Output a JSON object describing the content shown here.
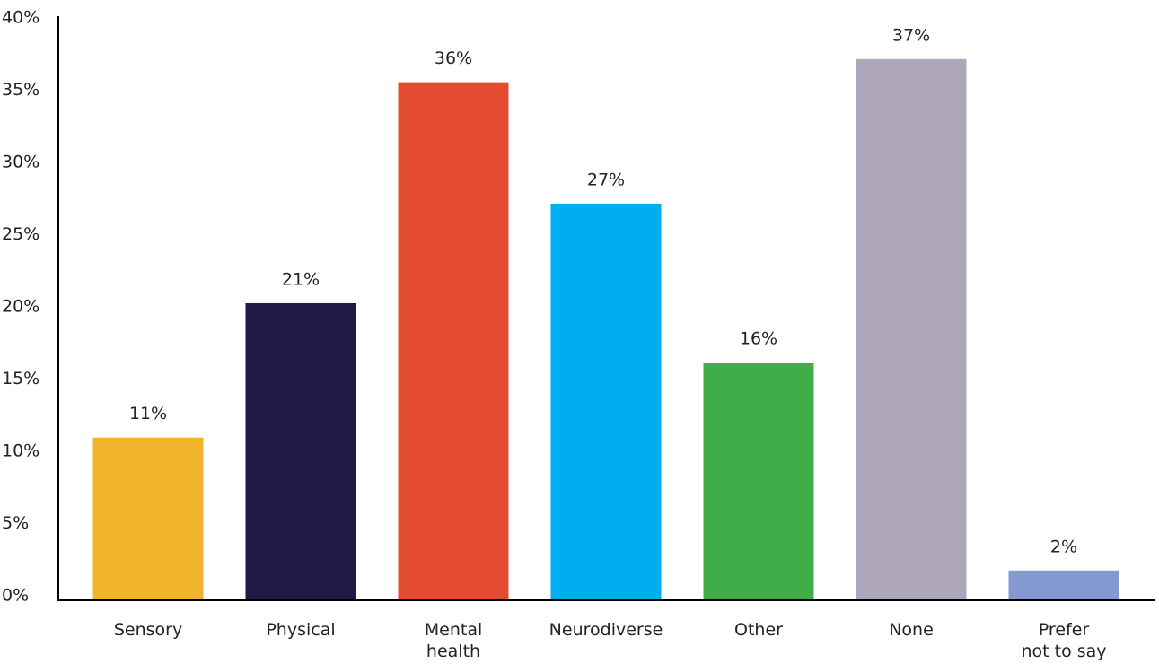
{
  "chart_data": {
    "type": "bar",
    "categories": [
      "Sensory",
      "Physical",
      "Mental\nhealth",
      "Neurodiverse",
      "Other",
      "None",
      "Prefer\nnot to say"
    ],
    "values": [
      11.2,
      20.5,
      35.8,
      27.4,
      16.4,
      37.4,
      2.0
    ],
    "value_labels": [
      "11%",
      "21%",
      "36%",
      "27%",
      "16%",
      "37%",
      "2%"
    ],
    "colors": [
      "#f0b52d",
      "#211a46",
      "#e44c2f",
      "#00aeef",
      "#41ad49",
      "#aea7bb",
      "#8399cf"
    ],
    "ylim": [
      0,
      40
    ],
    "yticks": [
      {
        "value": 0,
        "label": "0%"
      },
      {
        "value": 5,
        "label": "5%"
      },
      {
        "value": 10,
        "label": "10%"
      },
      {
        "value": 15,
        "label": "15%"
      },
      {
        "value": 20,
        "label": "20%"
      },
      {
        "value": 25,
        "label": "25%"
      },
      {
        "value": 30,
        "label": "30%"
      },
      {
        "value": 35,
        "label": "35%"
      },
      {
        "value": 40,
        "label": "40%"
      }
    ],
    "grid": false
  }
}
